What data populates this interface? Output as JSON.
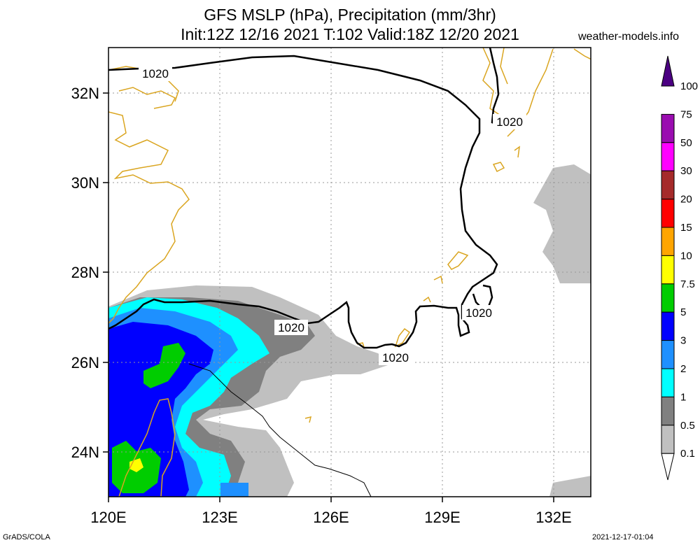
{
  "title_line1": "GFS MSLP (hPa), Precipitation (mm/3hr)",
  "title_line2": "Init:12Z 12/16 2021 T:102 Valid:18Z 12/20 2021",
  "site": "weather-models.info",
  "footer_left": "GrADS/COLA",
  "footer_right": "2021-12-17-01:04",
  "lon_labels": [
    "120E",
    "123E",
    "126E",
    "129E",
    "132E"
  ],
  "lat_labels": [
    "32N",
    "30N",
    "28N",
    "26N",
    "24N"
  ],
  "contour_labels": [
    "1020",
    "1020",
    "1020",
    "1020",
    "1020"
  ],
  "colorbar": [
    {
      "label": "100",
      "color": "#4b0082"
    },
    {
      "label": "75",
      "color": "#9a0db0"
    },
    {
      "label": "50",
      "color": "#ff00ff"
    },
    {
      "label": "30",
      "color": "#a52a2a"
    },
    {
      "label": "20",
      "color": "#ff0000"
    },
    {
      "label": "15",
      "color": "#ffa500"
    },
    {
      "label": "10",
      "color": "#ffff00"
    },
    {
      "label": "7.5",
      "color": "#00cd00"
    },
    {
      "label": "5",
      "color": "#0000ff"
    },
    {
      "label": "3",
      "color": "#1e90ff"
    },
    {
      "label": "2",
      "color": "#00ffff"
    },
    {
      "label": "1",
      "color": "#808080"
    },
    {
      "label": "0.5",
      "color": "#c0c0c0"
    },
    {
      "label": "0.1",
      "color": "#ffffff"
    }
  ],
  "colors": {
    "coast": "#daa520",
    "isobar": "#000000",
    "grid": "#999999",
    "precip_light": "#c0c0c0",
    "precip_grey": "#808080",
    "precip_cyan": "#00ffff",
    "precip_dodger": "#1e90ff",
    "precip_blue": "#0000ff",
    "precip_green": "#00cd00",
    "precip_yellow": "#ffff00"
  }
}
